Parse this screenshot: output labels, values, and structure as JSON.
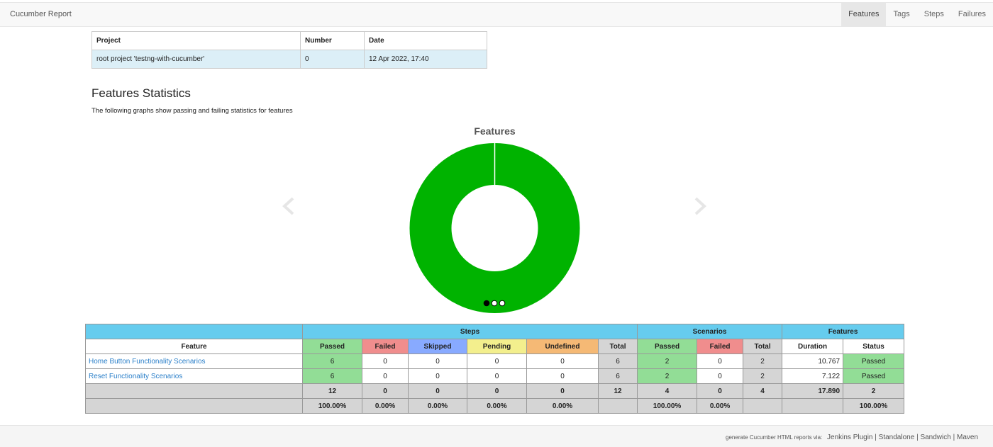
{
  "navbar": {
    "brand": "Cucumber Report",
    "links": [
      "Features",
      "Tags",
      "Steps",
      "Failures"
    ],
    "active": "Features"
  },
  "info": {
    "headers": [
      "Project",
      "Number",
      "Date"
    ],
    "row": [
      "root project 'testng-with-cucumber'",
      "0",
      "12 Apr 2022, 17:40"
    ]
  },
  "section": {
    "title": "Features Statistics",
    "subtitle": "The following graphs show passing and failing statistics for features"
  },
  "chart_data": {
    "type": "pie",
    "title": "Features",
    "categories": [
      "Passed"
    ],
    "values": [
      2
    ],
    "colors": [
      "#00b300"
    ]
  },
  "carousel": {
    "slides": 3,
    "active": 0
  },
  "stats": {
    "groups": [
      "Steps",
      "Scenarios",
      "Features"
    ],
    "columns": [
      "Feature",
      "Passed",
      "Failed",
      "Skipped",
      "Pending",
      "Undefined",
      "Total",
      "Passed",
      "Failed",
      "Total",
      "Duration",
      "Status"
    ],
    "rows": [
      {
        "feature": "Home Button Functionality Scenarios",
        "cells": [
          "6",
          "0",
          "0",
          "0",
          "0",
          "6",
          "2",
          "0",
          "2",
          "10.767",
          "Passed"
        ]
      },
      {
        "feature": "Reset Functionality Scenarios",
        "cells": [
          "6",
          "0",
          "0",
          "0",
          "0",
          "6",
          "2",
          "0",
          "2",
          "7.122",
          "Passed"
        ]
      }
    ],
    "totals": [
      "",
      "12",
      "0",
      "0",
      "0",
      "0",
      "12",
      "4",
      "0",
      "4",
      "17.890",
      "2"
    ],
    "percents": [
      "",
      "100.00%",
      "0.00%",
      "0.00%",
      "0.00%",
      "0.00%",
      "",
      "100.00%",
      "0.00%",
      "",
      "",
      "100.00%"
    ]
  },
  "footer": {
    "prefix": "generate Cucumber HTML reports via:",
    "links": [
      "Jenkins Plugin",
      "Standalone",
      "Sandwich",
      "Maven"
    ]
  },
  "colors": {
    "passed": "#92dd96",
    "failed": "#f08d8d",
    "skipped": "#88aaff",
    "pending": "#f3ef8d",
    "undefined": "#f5b975",
    "header": "#66ccee",
    "chart_green": "#00b300"
  }
}
